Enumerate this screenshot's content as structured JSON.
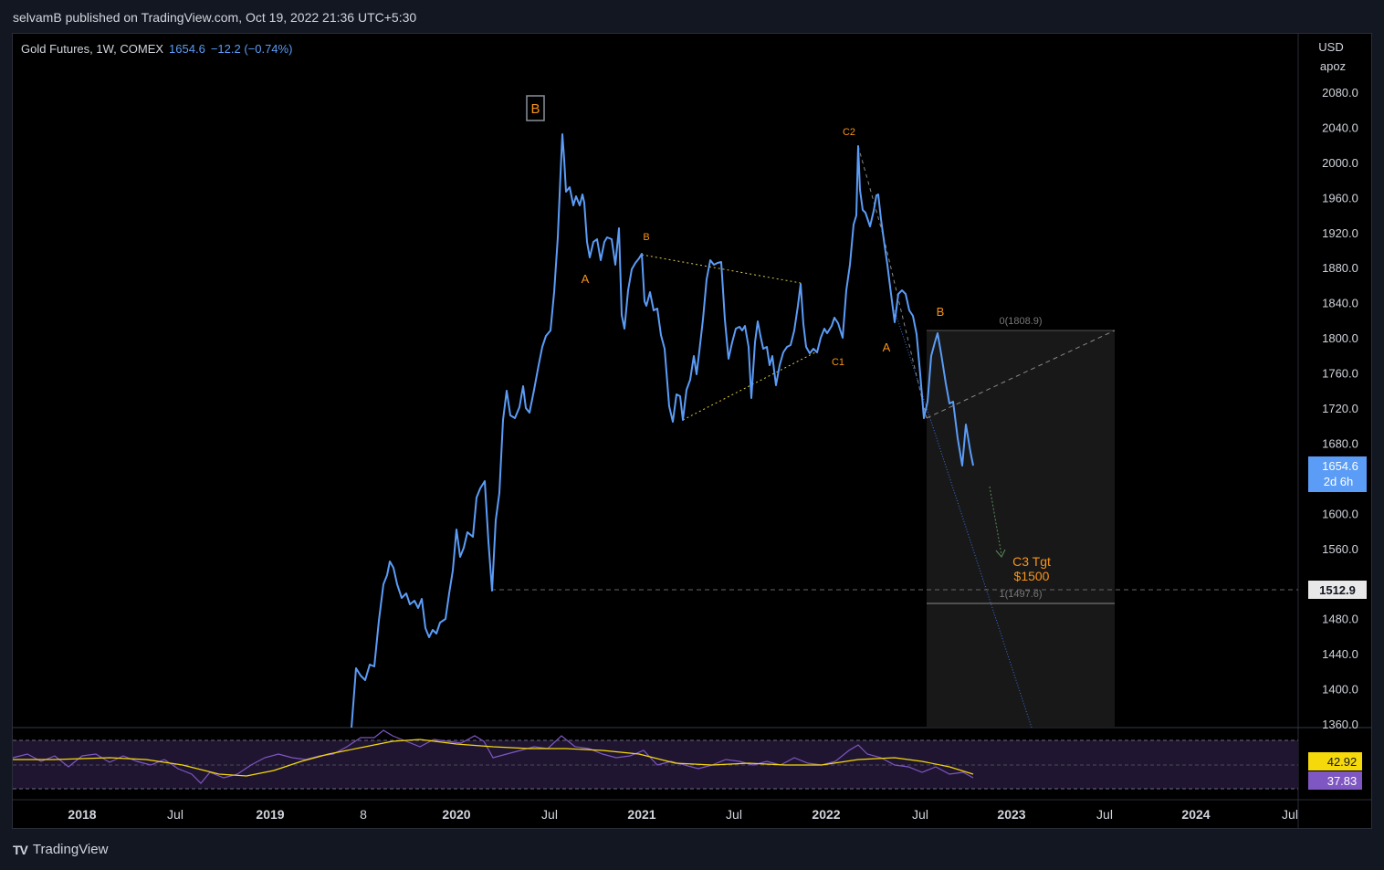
{
  "header": {
    "publisher_text": "selvamB published on TradingView.com, Oct 19, 2022 21:36 UTC+5:30"
  },
  "legend": {
    "symbol": "Gold Futures, 1W, COMEX",
    "price": "1654.6",
    "change": "−12.2 (−0.74%)"
  },
  "footer": {
    "brand": "TradingView",
    "logo_text": "TV"
  },
  "price_axis": {
    "currency": "USD",
    "scale_label": "apoz",
    "ticks": [
      "2080.0",
      "2040.0",
      "2000.0",
      "1960.0",
      "1920.0",
      "1880.0",
      "1840.0",
      "1800.0",
      "1760.0",
      "1720.0",
      "1680.0",
      "1600.0",
      "1560.0",
      "1480.0",
      "1440.0",
      "1400.0",
      "1360.0"
    ],
    "last_price_label": "1654.6",
    "countdown": "2d 6h",
    "line_label": "1512.9",
    "rsi_value": "42.92",
    "rsi_ma_value": "37.83"
  },
  "time_axis": {
    "labels": [
      "2018",
      "Jul",
      "2019",
      "8",
      "2020",
      "Jul",
      "2021",
      "Jul",
      "2022",
      "Jul",
      "2023",
      "Jul",
      "2024",
      "Jul"
    ]
  },
  "annotations": {
    "wave_B_box": "B",
    "a1": "A",
    "b1": "B",
    "c1": "C1",
    "c2": "C2",
    "a2": "A",
    "b2": "B",
    "target_line1": "C3 Tgt",
    "target_line2": "$1500",
    "fib_top": "0(1808.9)",
    "fib_bottom": "1(1497.6)"
  },
  "colors": {
    "price_line": "#5b9cf6",
    "annotation": "#f7931a",
    "rsi_line": "#7e57c2",
    "rsi_ma": "#f5d90a",
    "rsi_band": "#1f1530",
    "triangle": "#d9c94a"
  },
  "chart_data": {
    "type": "line",
    "title": "Gold Futures, 1W, COMEX",
    "y_range": [
      1340,
      2100
    ],
    "x_range": [
      "2017-11",
      "2024-08"
    ],
    "series": [
      {
        "name": "Gold Futures",
        "x": [
          "2019-05",
          "2019-06",
          "2019-07",
          "2019-09",
          "2019-10",
          "2019-12",
          "2020-01",
          "2020-02",
          "2020-03",
          "2020-04",
          "2020-05",
          "2020-06",
          "2020-07",
          "2020-08",
          "2020-09",
          "2020-10",
          "2020-11",
          "2020-12",
          "2021-01",
          "2021-02",
          "2021-03",
          "2021-04",
          "2021-05",
          "2021-06",
          "2021-07",
          "2021-08",
          "2021-09",
          "2021-10",
          "2021-11",
          "2021-12",
          "2022-01",
          "2022-02",
          "2022-03",
          "2022-04",
          "2022-05",
          "2022-06",
          "2022-07",
          "2022-08",
          "2022-09",
          "2022-10"
        ],
        "values": [
          1360,
          1425,
          1425,
          1545,
          1490,
          1470,
          1580,
          1640,
          1515,
          1740,
          1710,
          1745,
          1810,
          2035,
          1960,
          1915,
          1820,
          1885,
          1895,
          1810,
          1705,
          1780,
          1895,
          1775,
          1810,
          1730,
          1760,
          1795,
          1870,
          1780,
          1805,
          1905,
          2020,
          1945,
          1820,
          1855,
          1705,
          1808,
          1650,
          1654.6
        ]
      }
    ],
    "rsi": {
      "value": 42.92,
      "ma": 37.83
    },
    "annotations": [
      {
        "label": "C3 Tgt",
        "value": 1500
      },
      {
        "label": "1(1497.6)",
        "value": 1497.6
      },
      {
        "label": "0(1808.9)",
        "value": 1808.9
      }
    ]
  }
}
